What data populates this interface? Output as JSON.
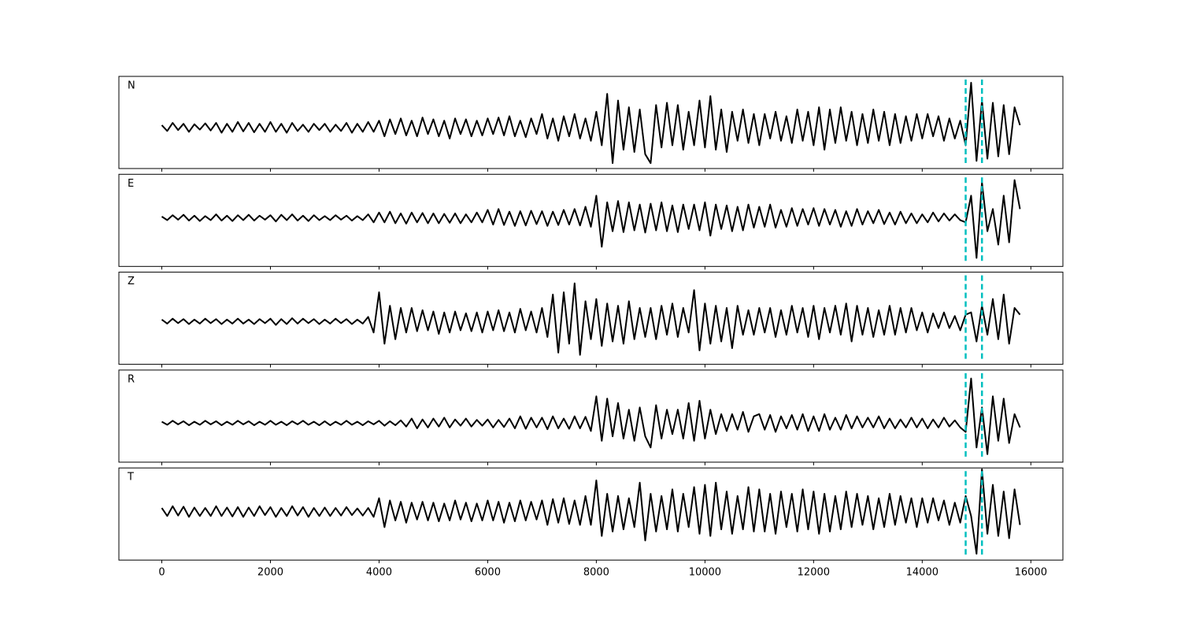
{
  "chart_data": {
    "type": "line",
    "x": [
      0,
      100,
      200,
      300,
      400,
      500,
      600,
      700,
      800,
      900,
      1000,
      1100,
      1200,
      1300,
      1400,
      1500,
      1600,
      1700,
      1800,
      1900,
      2000,
      2100,
      2200,
      2300,
      2400,
      2500,
      2600,
      2700,
      2800,
      2900,
      3000,
      3100,
      3200,
      3300,
      3400,
      3500,
      3600,
      3700,
      3800,
      3900,
      4000,
      4100,
      4200,
      4300,
      4400,
      4500,
      4600,
      4700,
      4800,
      4900,
      5000,
      5100,
      5200,
      5300,
      5400,
      5500,
      5600,
      5700,
      5800,
      5900,
      6000,
      6100,
      6200,
      6300,
      6400,
      6500,
      6600,
      6700,
      6800,
      6900,
      7000,
      7100,
      7200,
      7300,
      7400,
      7500,
      7600,
      7700,
      7800,
      7900,
      8000,
      8100,
      8200,
      8300,
      8400,
      8500,
      8600,
      8700,
      8800,
      8900,
      9000,
      9100,
      9200,
      9300,
      9400,
      9500,
      9600,
      9700,
      9800,
      9900,
      10000,
      10100,
      10200,
      10300,
      10400,
      10500,
      10600,
      10700,
      10800,
      10900,
      11000,
      11100,
      11200,
      11300,
      11400,
      11500,
      11600,
      11700,
      11800,
      11900,
      12000,
      12100,
      12200,
      12300,
      12400,
      12500,
      12600,
      12700,
      12800,
      12900,
      13000,
      13100,
      13200,
      13300,
      13400,
      13500,
      13600,
      13700,
      13800,
      13900,
      14000,
      14100,
      14200,
      14300,
      14400,
      14500,
      14600,
      14700,
      14800,
      14900,
      15000,
      15100,
      15200,
      15300,
      15400,
      15500,
      15600,
      15700,
      15800
    ],
    "xlim": [
      -790,
      16590
    ],
    "xticks": [
      0,
      2000,
      4000,
      6000,
      8000,
      10000,
      12000,
      14000,
      16000
    ],
    "markers": {
      "x": [
        14800,
        15100
      ],
      "color": "#00bfbf"
    },
    "series": [
      {
        "name": "N",
        "color": "#000000",
        "ylim": [
          -0.92,
          1.14
        ],
        "values": [
          0.05,
          -0.08,
          0.1,
          -0.06,
          0.08,
          -0.1,
          0.07,
          -0.05,
          0.09,
          -0.07,
          0.1,
          -0.12,
          0.08,
          -0.1,
          0.12,
          -0.09,
          0.1,
          -0.11,
          0.08,
          -0.1,
          0.12,
          -0.1,
          0.08,
          -0.12,
          0.1,
          -0.08,
          0.06,
          -0.1,
          0.08,
          -0.06,
          0.08,
          -0.1,
          0.06,
          -0.08,
          0.1,
          -0.12,
          0.08,
          -0.1,
          0.12,
          -0.1,
          0.15,
          -0.2,
          0.18,
          -0.15,
          0.2,
          -0.18,
          0.15,
          -0.2,
          0.22,
          -0.15,
          0.18,
          -0.2,
          0.15,
          -0.25,
          0.2,
          -0.15,
          0.18,
          -0.2,
          0.15,
          -0.18,
          0.2,
          -0.15,
          0.22,
          -0.18,
          0.25,
          -0.2,
          0.15,
          -0.22,
          0.2,
          -0.15,
          0.3,
          -0.25,
          0.2,
          -0.3,
          0.25,
          -0.2,
          0.3,
          -0.25,
          0.2,
          -0.3,
          0.35,
          -0.4,
          0.75,
          -0.8,
          0.6,
          -0.5,
          0.45,
          -0.55,
          0.4,
          -0.6,
          -0.8,
          0.5,
          -0.45,
          0.55,
          -0.4,
          0.5,
          -0.5,
          0.35,
          -0.4,
          0.6,
          -0.45,
          0.7,
          -0.5,
          0.4,
          -0.55,
          0.35,
          -0.3,
          0.4,
          -0.35,
          0.3,
          -0.4,
          0.3,
          -0.25,
          0.35,
          -0.3,
          0.25,
          -0.35,
          0.4,
          -0.3,
          0.35,
          -0.4,
          0.45,
          -0.5,
          0.4,
          -0.35,
          0.45,
          -0.3,
          0.35,
          -0.4,
          0.3,
          -0.35,
          0.4,
          -0.3,
          0.35,
          -0.4,
          0.3,
          -0.35,
          0.25,
          -0.3,
          0.3,
          -0.25,
          0.3,
          -0.2,
          0.25,
          -0.3,
          0.2,
          -0.25,
          0.15,
          -0.4,
          1.0,
          -0.75,
          0.6,
          -0.7,
          0.55,
          -0.65,
          0.5,
          -0.6,
          0.45,
          0.05
        ]
      },
      {
        "name": "E",
        "color": "#000000",
        "ylim": [
          -1.09,
          0.98
        ],
        "values": [
          0.03,
          -0.05,
          0.06,
          -0.04,
          0.07,
          -0.06,
          0.05,
          -0.07,
          0.04,
          -0.05,
          0.08,
          -0.06,
          0.05,
          -0.07,
          0.06,
          -0.05,
          0.07,
          -0.06,
          0.05,
          -0.04,
          0.06,
          -0.08,
          0.07,
          -0.05,
          0.08,
          -0.06,
          0.05,
          -0.07,
          0.06,
          -0.05,
          0.04,
          -0.05,
          0.06,
          -0.04,
          0.05,
          -0.06,
          0.04,
          -0.05,
          0.08,
          -0.1,
          0.12,
          -0.1,
          0.14,
          -0.12,
          0.1,
          -0.13,
          0.12,
          -0.1,
          0.11,
          -0.12,
          0.1,
          -0.12,
          0.09,
          -0.11,
          0.1,
          -0.12,
          0.08,
          -0.1,
          0.12,
          -0.1,
          0.18,
          -0.15,
          0.2,
          -0.16,
          0.14,
          -0.18,
          0.15,
          -0.17,
          0.16,
          -0.14,
          0.15,
          -0.18,
          0.14,
          -0.16,
          0.18,
          -0.15,
          0.2,
          -0.17,
          0.25,
          -0.2,
          0.5,
          -0.65,
          0.35,
          -0.3,
          0.38,
          -0.32,
          0.35,
          -0.28,
          0.3,
          -0.33,
          0.32,
          -0.28,
          0.35,
          -0.3,
          0.28,
          -0.32,
          0.3,
          -0.25,
          0.3,
          -0.28,
          0.35,
          -0.4,
          0.3,
          -0.25,
          0.28,
          -0.3,
          0.25,
          -0.28,
          0.3,
          -0.22,
          0.25,
          -0.2,
          0.3,
          -0.22,
          0.18,
          -0.2,
          0.22,
          -0.18,
          0.2,
          -0.15,
          0.22,
          -0.18,
          0.2,
          -0.15,
          0.18,
          -0.2,
          0.15,
          -0.18,
          0.2,
          -0.15,
          0.15,
          -0.12,
          0.18,
          -0.14,
          0.12,
          -0.15,
          0.14,
          -0.12,
          0.1,
          -0.12,
          0.08,
          -0.1,
          0.12,
          -0.08,
          0.1,
          -0.06,
          0.08,
          -0.05,
          -0.1,
          0.5,
          -0.9,
          0.8,
          -0.3,
          0.2,
          -0.6,
          0.5,
          -0.55,
          0.85,
          0.2
        ]
      },
      {
        "name": "Z",
        "color": "#000000",
        "ylim": [
          -0.96,
          1.1
        ],
        "values": [
          0.04,
          -0.05,
          0.06,
          -0.04,
          0.05,
          -0.06,
          0.04,
          -0.05,
          0.06,
          -0.04,
          0.05,
          -0.06,
          0.04,
          -0.05,
          0.06,
          -0.05,
          0.04,
          -0.06,
          0.05,
          -0.04,
          0.06,
          -0.08,
          0.05,
          -0.06,
          0.07,
          -0.05,
          0.06,
          -0.04,
          0.05,
          -0.06,
          0.04,
          -0.05,
          0.06,
          -0.04,
          0.05,
          -0.06,
          0.04,
          -0.05,
          0.1,
          -0.25,
          0.65,
          -0.5,
          0.35,
          -0.4,
          0.3,
          -0.25,
          0.3,
          -0.22,
          0.25,
          -0.2,
          0.22,
          -0.28,
          0.2,
          -0.25,
          0.22,
          -0.2,
          0.18,
          -0.22,
          0.2,
          -0.25,
          0.22,
          -0.2,
          0.25,
          -0.22,
          0.2,
          -0.25,
          0.28,
          -0.2,
          0.22,
          -0.25,
          0.3,
          -0.35,
          0.6,
          -0.7,
          0.65,
          -0.5,
          0.85,
          -0.75,
          0.45,
          -0.4,
          0.5,
          -0.55,
          0.4,
          -0.45,
          0.35,
          -0.5,
          0.45,
          -0.4,
          0.3,
          -0.35,
          0.3,
          -0.4,
          0.35,
          -0.3,
          0.4,
          -0.35,
          0.3,
          -0.25,
          0.7,
          -0.65,
          0.4,
          -0.5,
          0.35,
          -0.45,
          0.3,
          -0.6,
          0.35,
          -0.3,
          0.25,
          -0.3,
          0.3,
          -0.25,
          0.3,
          -0.35,
          0.25,
          -0.3,
          0.35,
          -0.25,
          0.3,
          -0.35,
          0.35,
          -0.4,
          0.3,
          -0.25,
          0.35,
          -0.3,
          0.4,
          -0.45,
          0.35,
          -0.3,
          0.3,
          -0.35,
          0.25,
          -0.3,
          0.35,
          -0.3,
          0.3,
          -0.25,
          0.3,
          -0.2,
          0.2,
          -0.25,
          0.18,
          -0.15,
          0.2,
          -0.15,
          0.12,
          -0.2,
          0.15,
          0.2,
          -0.45,
          0.35,
          -0.3,
          0.5,
          -0.4,
          0.6,
          -0.5,
          0.3,
          0.15
        ]
      },
      {
        "name": "R",
        "color": "#000000",
        "ylim": [
          -0.88,
          1.19
        ],
        "values": [
          0.03,
          -0.04,
          0.05,
          -0.03,
          0.04,
          -0.05,
          0.03,
          -0.04,
          0.05,
          -0.03,
          0.04,
          -0.05,
          0.03,
          -0.04,
          0.05,
          -0.03,
          0.04,
          -0.05,
          0.03,
          -0.04,
          0.05,
          -0.04,
          0.03,
          -0.05,
          0.04,
          -0.03,
          0.05,
          -0.04,
          0.03,
          -0.05,
          0.04,
          -0.05,
          0.03,
          -0.04,
          0.05,
          -0.04,
          0.03,
          -0.05,
          0.04,
          -0.03,
          0.05,
          -0.06,
          0.04,
          -0.05,
          0.06,
          -0.08,
          0.1,
          -0.12,
          0.08,
          -0.1,
          0.1,
          -0.08,
          0.12,
          -0.1,
          0.08,
          -0.06,
          0.1,
          -0.08,
          0.07,
          -0.06,
          0.08,
          -0.1,
          0.07,
          -0.09,
          0.1,
          -0.12,
          0.15,
          -0.13,
          0.12,
          -0.1,
          0.12,
          -0.14,
          0.15,
          -0.12,
          0.1,
          -0.13,
          0.15,
          -0.12,
          0.14,
          -0.18,
          0.6,
          -0.4,
          0.55,
          -0.3,
          0.45,
          -0.35,
          0.3,
          -0.4,
          0.35,
          -0.3,
          -0.55,
          0.4,
          -0.35,
          0.3,
          -0.25,
          0.3,
          -0.35,
          0.45,
          -0.4,
          0.5,
          -0.35,
          0.3,
          -0.25,
          0.2,
          -0.18,
          0.2,
          -0.15,
          0.25,
          -0.2,
          0.15,
          0.2,
          -0.15,
          0.18,
          -0.2,
          0.15,
          -0.12,
          0.18,
          -0.15,
          0.2,
          -0.18,
          0.15,
          -0.18,
          0.2,
          -0.15,
          0.12,
          -0.15,
          0.18,
          -0.12,
          0.15,
          -0.1,
          0.12,
          -0.1,
          0.15,
          -0.12,
          0.1,
          -0.12,
          0.08,
          -0.1,
          0.12,
          -0.1,
          0.1,
          -0.12,
          0.08,
          -0.1,
          0.12,
          -0.08,
          0.06,
          -0.1,
          -0.2,
          1.0,
          -0.55,
          0.35,
          -0.7,
          0.6,
          -0.4,
          0.55,
          -0.45,
          0.2,
          -0.1
        ]
      },
      {
        "name": "T",
        "color": "#000000",
        "ylim": [
          -1.09,
          0.98
        ],
        "values": [
          0.08,
          -0.1,
          0.12,
          -0.09,
          0.11,
          -0.12,
          0.09,
          -0.1,
          0.08,
          -0.1,
          0.12,
          -0.1,
          0.09,
          -0.11,
          0.1,
          -0.12,
          0.09,
          -0.1,
          0.12,
          -0.08,
          0.1,
          -0.12,
          0.08,
          -0.1,
          0.12,
          -0.09,
          0.1,
          -0.12,
          0.08,
          -0.1,
          0.09,
          -0.1,
          0.08,
          -0.09,
          0.1,
          -0.08,
          0.07,
          -0.09,
          0.08,
          -0.12,
          0.3,
          -0.35,
          0.25,
          -0.2,
          0.22,
          -0.25,
          0.2,
          -0.18,
          0.22,
          -0.2,
          0.2,
          -0.22,
          0.18,
          -0.2,
          0.25,
          -0.18,
          0.2,
          -0.22,
          0.18,
          -0.2,
          0.25,
          -0.2,
          0.22,
          -0.25,
          0.2,
          -0.22,
          0.25,
          -0.2,
          0.22,
          -0.18,
          0.25,
          -0.3,
          0.28,
          -0.25,
          0.3,
          -0.28,
          0.25,
          -0.3,
          0.35,
          -0.3,
          0.7,
          -0.55,
          0.4,
          -0.45,
          0.35,
          -0.4,
          0.3,
          -0.35,
          0.65,
          -0.65,
          0.4,
          -0.45,
          0.35,
          -0.4,
          0.5,
          -0.45,
          0.4,
          -0.35,
          0.55,
          -0.5,
          0.6,
          -0.55,
          0.65,
          -0.4,
          0.45,
          -0.5,
          0.35,
          -0.4,
          0.55,
          -0.45,
          0.5,
          -0.45,
          0.4,
          -0.5,
          0.45,
          -0.35,
          0.4,
          -0.45,
          0.5,
          -0.4,
          0.45,
          -0.5,
          0.4,
          -0.45,
          0.35,
          -0.4,
          0.45,
          -0.35,
          0.4,
          -0.3,
          0.35,
          -0.4,
          0.3,
          -0.35,
          0.4,
          -0.3,
          0.35,
          -0.25,
          0.3,
          -0.35,
          0.3,
          -0.25,
          0.3,
          -0.2,
          0.25,
          -0.3,
          0.2,
          -0.25,
          0.35,
          -0.1,
          -0.95,
          0.95,
          -0.5,
          0.6,
          -0.55,
          0.45,
          -0.6,
          0.5,
          -0.3
        ]
      }
    ]
  }
}
